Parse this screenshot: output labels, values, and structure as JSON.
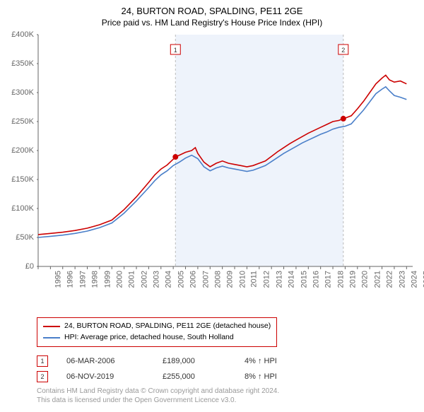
{
  "title": "24, BURTON ROAD, SPALDING, PE11 2GE",
  "subtitle": "Price paid vs. HM Land Registry's House Price Index (HPI)",
  "chart": {
    "type": "line",
    "background_color": "#ffffff",
    "plot_bg": "#ffffff",
    "shaded_bg": "#eef3fb",
    "shaded_start": 2006.18,
    "shaded_end": 2019.85,
    "grid_color": "#d9d9d9",
    "axis_color": "#666666",
    "x_start": 1995,
    "x_end": 2025.5,
    "y_start": 0,
    "y_end": 400000,
    "y_tick_step": 50000,
    "y_tick_format": "£{v}K",
    "x_ticks": [
      1995,
      1996,
      1997,
      1998,
      1999,
      2000,
      2001,
      2002,
      2003,
      2004,
      2005,
      2006,
      2007,
      2008,
      2009,
      2010,
      2011,
      2012,
      2013,
      2014,
      2015,
      2016,
      2017,
      2018,
      2019,
      2020,
      2021,
      2022,
      2023,
      2024,
      2025
    ],
    "label_fontsize": 11,
    "label_color": "#666666",
    "line_width": 1.6,
    "series": [
      {
        "name": "property",
        "label": "24, BURTON ROAD, SPALDING, PE11 2GE (detached house)",
        "color": "#cc0000",
        "points": [
          [
            1995,
            55000
          ],
          [
            1996,
            57000
          ],
          [
            1997,
            59000
          ],
          [
            1998,
            62000
          ],
          [
            1999,
            66000
          ],
          [
            2000,
            72000
          ],
          [
            2001,
            80000
          ],
          [
            2002,
            98000
          ],
          [
            2003,
            120000
          ],
          [
            2004,
            145000
          ],
          [
            2004.5,
            158000
          ],
          [
            2005,
            168000
          ],
          [
            2005.5,
            175000
          ],
          [
            2006,
            185000
          ],
          [
            2006.18,
            189000
          ],
          [
            2006.5,
            192000
          ],
          [
            2007,
            197000
          ],
          [
            2007.5,
            200000
          ],
          [
            2007.8,
            205000
          ],
          [
            2008,
            195000
          ],
          [
            2008.5,
            180000
          ],
          [
            2009,
            172000
          ],
          [
            2009.5,
            178000
          ],
          [
            2010,
            182000
          ],
          [
            2010.5,
            178000
          ],
          [
            2011,
            176000
          ],
          [
            2011.5,
            174000
          ],
          [
            2012,
            172000
          ],
          [
            2012.5,
            174000
          ],
          [
            2013,
            178000
          ],
          [
            2013.5,
            182000
          ],
          [
            2014,
            190000
          ],
          [
            2014.5,
            198000
          ],
          [
            2015,
            205000
          ],
          [
            2015.5,
            212000
          ],
          [
            2016,
            218000
          ],
          [
            2016.5,
            224000
          ],
          [
            2017,
            230000
          ],
          [
            2017.5,
            235000
          ],
          [
            2018,
            240000
          ],
          [
            2018.5,
            245000
          ],
          [
            2019,
            250000
          ],
          [
            2019.5,
            252000
          ],
          [
            2019.85,
            255000
          ],
          [
            2020,
            256000
          ],
          [
            2020.5,
            260000
          ],
          [
            2021,
            272000
          ],
          [
            2021.5,
            285000
          ],
          [
            2022,
            300000
          ],
          [
            2022.5,
            315000
          ],
          [
            2023,
            325000
          ],
          [
            2023.3,
            330000
          ],
          [
            2023.6,
            322000
          ],
          [
            2024,
            318000
          ],
          [
            2024.5,
            320000
          ],
          [
            2025,
            315000
          ]
        ]
      },
      {
        "name": "hpi",
        "label": "HPI: Average price, detached house, South Holland",
        "color": "#4a7fc9",
        "points": [
          [
            1995,
            50000
          ],
          [
            1996,
            52000
          ],
          [
            1997,
            54000
          ],
          [
            1998,
            57000
          ],
          [
            1999,
            61000
          ],
          [
            2000,
            67000
          ],
          [
            2001,
            75000
          ],
          [
            2002,
            92000
          ],
          [
            2003,
            113000
          ],
          [
            2004,
            136000
          ],
          [
            2004.5,
            148000
          ],
          [
            2005,
            158000
          ],
          [
            2005.5,
            165000
          ],
          [
            2006,
            174000
          ],
          [
            2006.5,
            180000
          ],
          [
            2007,
            187000
          ],
          [
            2007.5,
            192000
          ],
          [
            2008,
            186000
          ],
          [
            2008.5,
            172000
          ],
          [
            2009,
            165000
          ],
          [
            2009.5,
            170000
          ],
          [
            2010,
            173000
          ],
          [
            2010.5,
            170000
          ],
          [
            2011,
            168000
          ],
          [
            2011.5,
            166000
          ],
          [
            2012,
            164000
          ],
          [
            2012.5,
            166000
          ],
          [
            2013,
            170000
          ],
          [
            2013.5,
            174000
          ],
          [
            2014,
            181000
          ],
          [
            2014.5,
            188000
          ],
          [
            2015,
            195000
          ],
          [
            2015.5,
            201000
          ],
          [
            2016,
            207000
          ],
          [
            2016.5,
            213000
          ],
          [
            2017,
            218000
          ],
          [
            2017.5,
            223000
          ],
          [
            2018,
            228000
          ],
          [
            2018.5,
            232000
          ],
          [
            2019,
            237000
          ],
          [
            2019.5,
            240000
          ],
          [
            2020,
            242000
          ],
          [
            2020.5,
            246000
          ],
          [
            2021,
            258000
          ],
          [
            2021.5,
            270000
          ],
          [
            2022,
            284000
          ],
          [
            2022.5,
            298000
          ],
          [
            2023,
            306000
          ],
          [
            2023.3,
            310000
          ],
          [
            2023.6,
            303000
          ],
          [
            2024,
            295000
          ],
          [
            2024.5,
            292000
          ],
          [
            2025,
            288000
          ]
        ]
      }
    ],
    "sale_markers": [
      {
        "n": 1,
        "x": 2006.18,
        "y": 189000,
        "color": "#cc0000",
        "box_color": "#cc0000"
      },
      {
        "n": 2,
        "x": 2019.85,
        "y": 255000,
        "color": "#cc0000",
        "box_color": "#cc0000"
      }
    ],
    "sale_marker_radius": 4,
    "sale_label_bg": "#ffffff",
    "sale_label_border": "#cc0000"
  },
  "sales": [
    {
      "n": "1",
      "date": "06-MAR-2006",
      "price": "£189,000",
      "delta": "4% ↑ HPI",
      "box_color": "#cc0000"
    },
    {
      "n": "2",
      "date": "06-NOV-2019",
      "price": "£255,000",
      "delta": "8% ↑ HPI",
      "box_color": "#cc0000"
    }
  ],
  "footnote1": "Contains HM Land Registry data © Crown copyright and database right 2024.",
  "footnote2": "This data is licensed under the Open Government Licence v3.0."
}
